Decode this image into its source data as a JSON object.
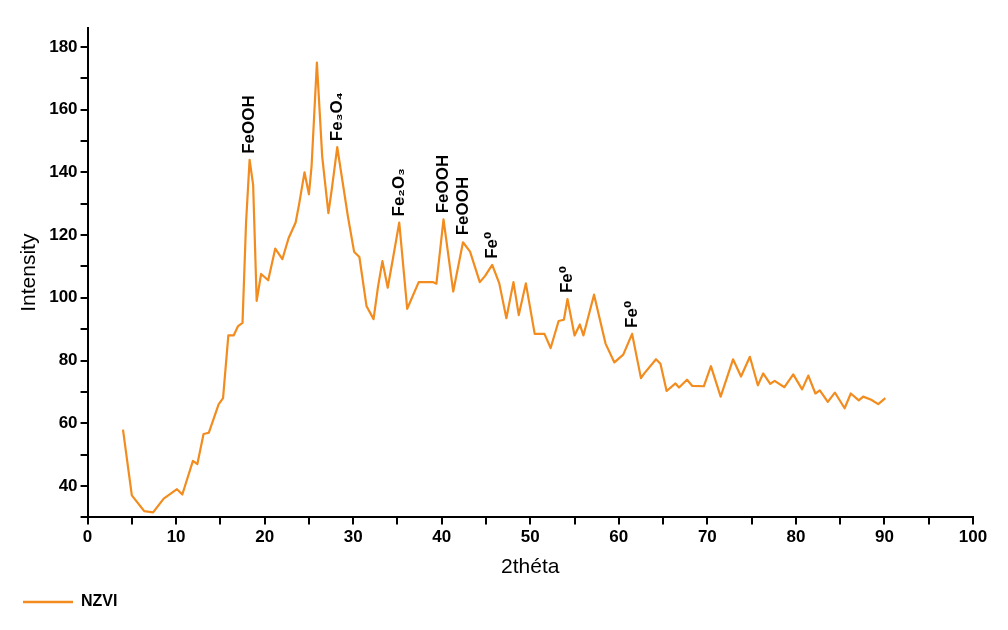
{
  "chart_data": {
    "type": "line",
    "xlabel": "2théta",
    "ylabel": "Intensity",
    "xlim": [
      0,
      100
    ],
    "ylim": [
      30,
      186
    ],
    "xticks": [
      0,
      {
        "value": 5,
        "label": null
      },
      10,
      {
        "value": 15,
        "label": null
      },
      20,
      {
        "value": 25,
        "label": null
      },
      30,
      {
        "value": 35,
        "label": null
      },
      40,
      {
        "value": 45,
        "label": null
      },
      50,
      {
        "value": 55,
        "label": null
      },
      60,
      {
        "value": 65,
        "label": null
      },
      70,
      {
        "value": 75,
        "label": null
      },
      80,
      {
        "value": 85,
        "label": null
      },
      90,
      {
        "value": 95,
        "label": null
      },
      100
    ],
    "yticks": [
      {
        "value": 30,
        "label": null
      },
      40,
      {
        "value": 50,
        "label": null
      },
      60,
      {
        "value": 70,
        "label": null
      },
      80,
      {
        "value": 90,
        "label": null
      },
      100,
      {
        "value": 110,
        "label": null
      },
      120,
      {
        "value": 130,
        "label": null
      },
      140,
      {
        "value": 150,
        "label": null
      },
      160,
      {
        "value": 170,
        "label": null
      },
      180
    ],
    "grid": false,
    "legend": "bottom left",
    "marker": "none",
    "line_style": "solid",
    "series": [
      {
        "name": "NZVI",
        "color": "#f28c1e",
        "x": [
          4.0,
          5.0,
          6.4,
          7.4,
          8.6,
          10.1,
          10.7,
          11.9,
          12.4,
          13.1,
          13.7,
          14.8,
          15.3,
          15.9,
          16.5,
          17.0,
          17.5,
          17.9,
          18.3,
          18.7,
          19.1,
          19.6,
          20.4,
          21.2,
          22.0,
          22.7,
          23.5,
          23.9,
          24.5,
          25.0,
          25.3,
          25.9,
          26.5,
          27.2,
          27.6,
          28.2,
          28.8,
          29.4,
          30.1,
          30.7,
          31.5,
          32.3,
          32.8,
          33.3,
          33.9,
          34.5,
          35.2,
          36.1,
          37.4,
          39.0,
          39.4,
          40.2,
          41.3,
          42.4,
          43.2,
          44.3,
          44.9,
          45.7,
          46.5,
          47.3,
          48.1,
          48.7,
          49.5,
          50.5,
          51.6,
          52.3,
          53.2,
          53.8,
          54.2,
          55.0,
          55.6,
          56.0,
          57.2,
          58.5,
          59.5,
          60.5,
          61.5,
          62.5,
          62.9,
          64.2,
          64.7,
          65.4,
          66.4,
          66.8,
          67.7,
          68.3,
          69.6,
          70.4,
          71.5,
          72.9,
          73.8,
          74.8,
          75.7,
          76.3,
          77.1,
          77.6,
          78.7,
          79.7,
          80.7,
          81.4,
          82.2,
          82.7,
          83.6,
          84.4,
          85.5,
          86.2,
          87.1,
          87.6,
          88.5,
          89.3,
          90.1
        ],
        "values": [
          58,
          37,
          32,
          31.6,
          36,
          39,
          37.3,
          48,
          47,
          56.6,
          57,
          66,
          68,
          88,
          88,
          91,
          92,
          124,
          144,
          136,
          99,
          107.6,
          105.6,
          115.7,
          112.3,
          119,
          124,
          130,
          140,
          133,
          142,
          175,
          145,
          127,
          135,
          148,
          137,
          126,
          114.7,
          113,
          97.4,
          93.2,
          103.5,
          111.7,
          103.2,
          112.7,
          124,
          96.5,
          105,
          105,
          104.5,
          125,
          102,
          117.7,
          114.7,
          105,
          107,
          110.5,
          104.6,
          93.5,
          105,
          94.5,
          104.6,
          88.5,
          88.5,
          84,
          92.6,
          93,
          99.6,
          88,
          91.5,
          88,
          101,
          85.4,
          79.4,
          81.9,
          88.5,
          74.4,
          76,
          80.4,
          79,
          70.3,
          72.7,
          71.4,
          73.9,
          71.9,
          71.8,
          78.2,
          68.5,
          80.4,
          74.9,
          81.2,
          72.1,
          75.9,
          72.6,
          73.5,
          71.5,
          75.6,
          70.8,
          75.2,
          69.5,
          70.5,
          66.8,
          69.8,
          64.8,
          69.5,
          67.3,
          68.5,
          67.5,
          66.1,
          68
        ]
      }
    ],
    "annotations": [
      {
        "text": "FeOOH",
        "x": 18.3,
        "y": 144
      },
      {
        "text": "Fe₃O₄",
        "x": 28.2,
        "y": 148
      },
      {
        "text": "Fe₂O₃",
        "x": 35.2,
        "y": 124
      },
      {
        "text": "FeOOH",
        "x": 40.2,
        "y": 125
      },
      {
        "text": "FeOOH",
        "x": 42.4,
        "y": 118
      },
      {
        "text": "Fe⁰",
        "x": 45.7,
        "y": 110.5
      },
      {
        "text": "Fe⁰",
        "x": 54.2,
        "y": 99.6
      },
      {
        "text": "Fe⁰",
        "x": 61.5,
        "y": 88.5
      }
    ]
  }
}
